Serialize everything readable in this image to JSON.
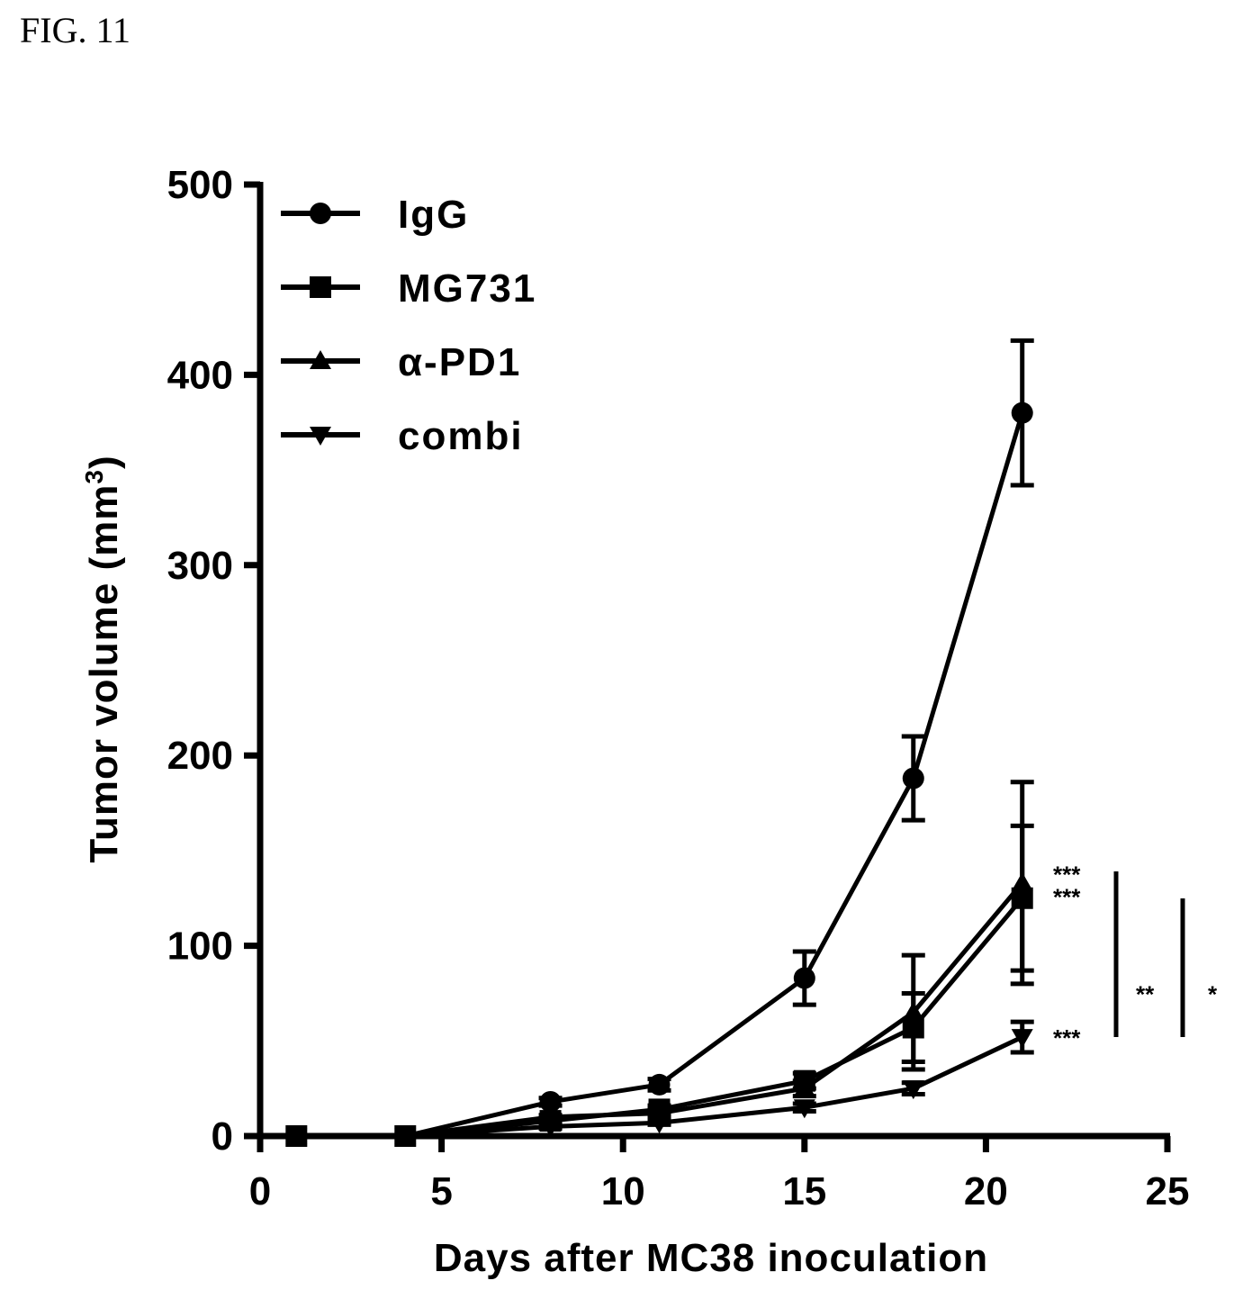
{
  "figure_label": "FIG. 11",
  "chart_data": {
    "type": "line",
    "title": "",
    "xlabel": "Days after MC38 inoculation",
    "ylabel_main": "Tumor volume (mm",
    "ylabel_sup": "3",
    "ylabel_close": ")",
    "xlim": [
      0,
      25
    ],
    "ylim": [
      0,
      500
    ],
    "xticks": [
      0,
      5,
      10,
      15,
      20,
      25
    ],
    "yticks": [
      0,
      100,
      200,
      300,
      400,
      500
    ],
    "grid": false,
    "legend_position": "top-left",
    "x": [
      1,
      4,
      8,
      11,
      15,
      18,
      21
    ],
    "series": [
      {
        "name": "IgG",
        "marker": "circle",
        "values": [
          0,
          0,
          18,
          27,
          83,
          188,
          380
        ],
        "errors": [
          0,
          0,
          2,
          3,
          14,
          22,
          38
        ]
      },
      {
        "name": "MG731",
        "marker": "square",
        "values": [
          0,
          0,
          8,
          14,
          29,
          57,
          125
        ],
        "errors": [
          0,
          0,
          1,
          2,
          4,
          18,
          38
        ]
      },
      {
        "name": "α-PD1",
        "marker": "triangle-up",
        "values": [
          0,
          0,
          10,
          12,
          25,
          65,
          133
        ],
        "errors": [
          0,
          0,
          1,
          2,
          4,
          30,
          53
        ]
      },
      {
        "name": "combi",
        "marker": "triangle-down",
        "values": [
          0,
          0,
          5,
          7,
          15,
          25,
          52
        ],
        "errors": [
          0,
          0,
          1,
          1,
          2,
          3,
          8
        ]
      }
    ],
    "annotations": [
      {
        "text": "***",
        "y": 138
      },
      {
        "text": "***",
        "y": 126
      },
      {
        "text": "***",
        "y": 52
      },
      {
        "text": "**",
        "y": 75
      },
      {
        "text": "*",
        "y": 75
      }
    ]
  }
}
